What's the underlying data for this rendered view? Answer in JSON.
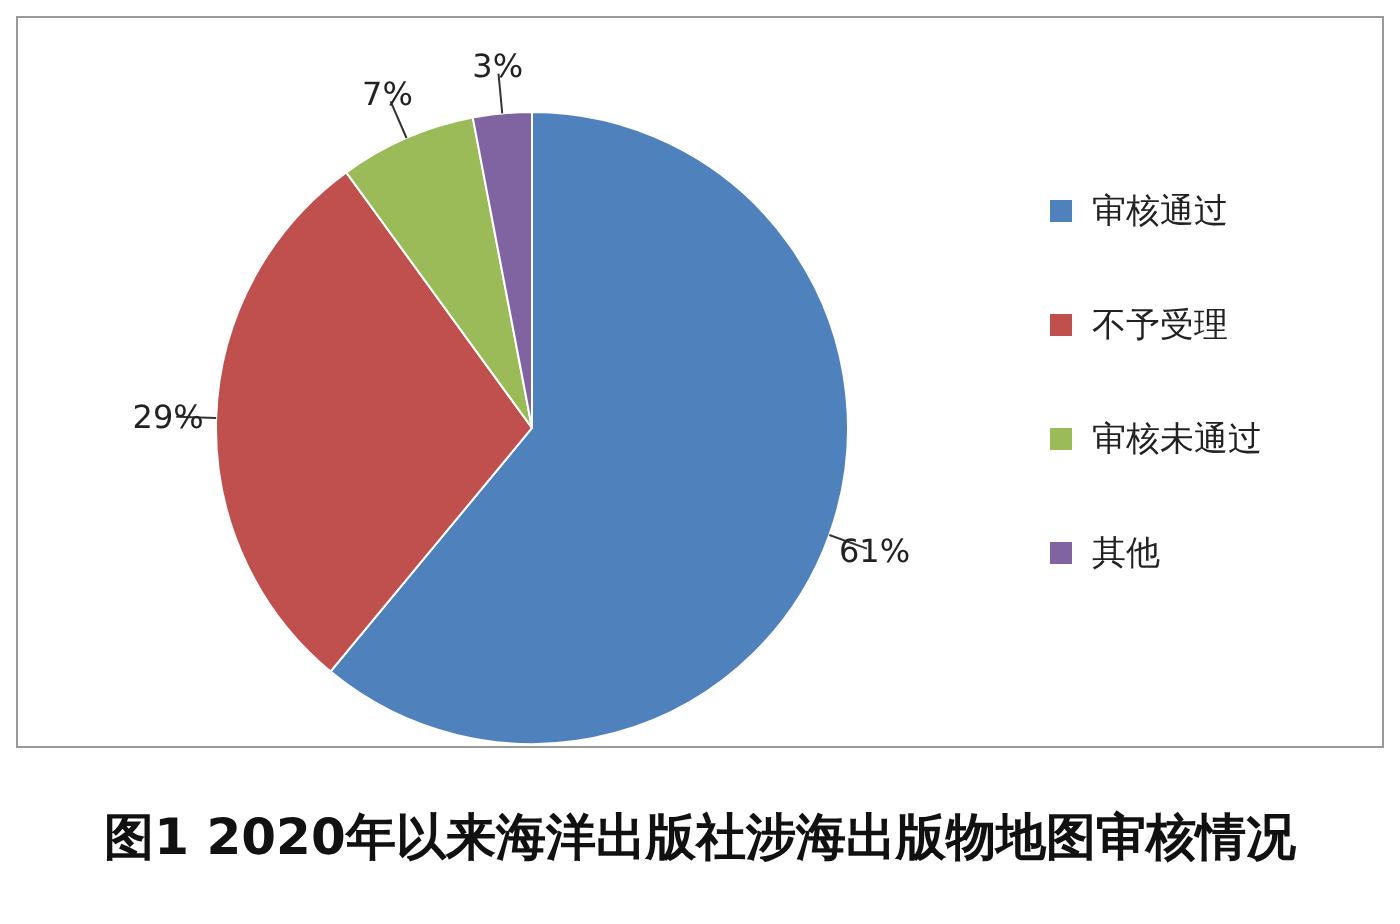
{
  "chart_data": {
    "type": "pie",
    "title": "图1 2020年以来海洋出版社涉海出版物地图审核情况",
    "categories": [
      "审核通过",
      "不予受理",
      "审核未通过",
      "其他"
    ],
    "values": [
      61,
      29,
      7,
      3
    ],
    "colors": [
      "#4f81bd",
      "#c0504d",
      "#9bbb59",
      "#8064a2"
    ],
    "value_labels": [
      "61%",
      "29%",
      "7%",
      "3%"
    ],
    "legend": "right"
  }
}
